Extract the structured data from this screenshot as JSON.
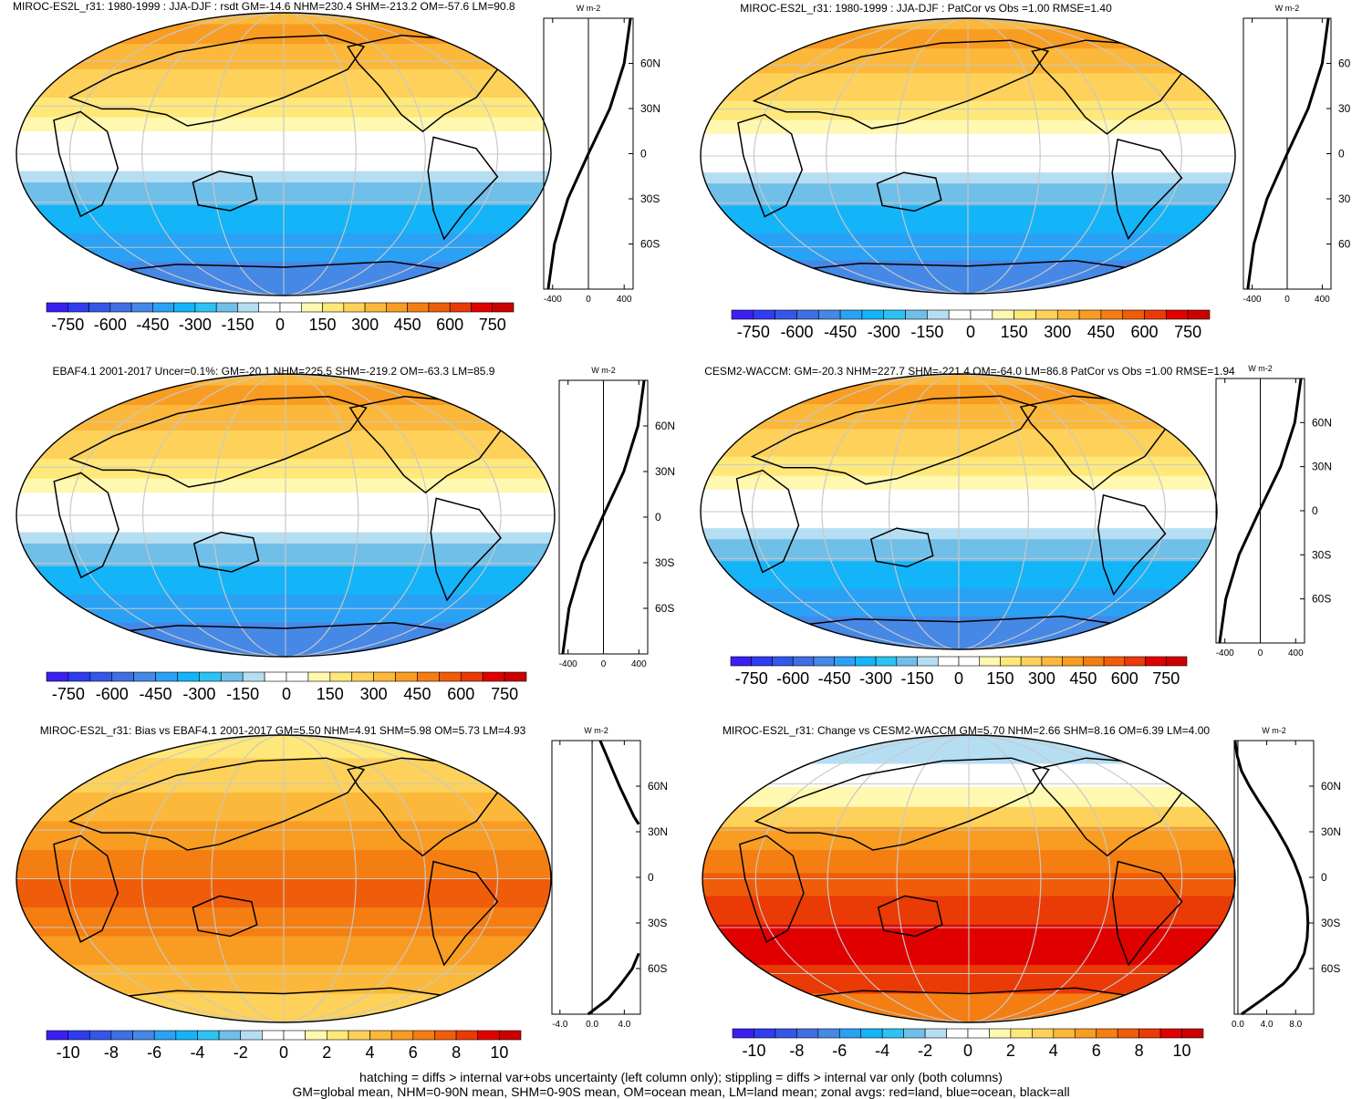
{
  "chart_data": [
    {
      "type": "heatmap",
      "title": "MIROC-ES2L_r31: 1980-1999 : JJA-DJF : rsdt GM=-14.6 NHM=230.4 SHM=-213.2 OM=-57.6 LM=90.8",
      "colorbar": {
        "ticks": [
          "-750",
          "-600",
          "-450",
          "-300",
          "-150",
          "0",
          "150",
          "300",
          "450",
          "600",
          "750"
        ],
        "range": [
          -825,
          825
        ]
      },
      "zonal_profile": {
        "units": "W m-2",
        "xticks": [
          "-400",
          "0",
          "400"
        ],
        "xlim": [
          -500,
          500
        ],
        "yticks": [
          "60N",
          "30N",
          "0",
          "30S",
          "60S"
        ],
        "ylim": [
          -90,
          90
        ],
        "lat": [
          90,
          60,
          30,
          0,
          -30,
          -60,
          -90
        ],
        "values": [
          470,
          400,
          240,
          0,
          -230,
          -380,
          -450
        ]
      }
    },
    {
      "type": "heatmap",
      "title": "MIROC-ES2L_r31: 1980-1999 : JJA-DJF : PatCor vs Obs =1.00 RMSE=1.40",
      "colorbar": {
        "ticks": [
          "-750",
          "-600",
          "-450",
          "-300",
          "-150",
          "0",
          "150",
          "300",
          "450",
          "600",
          "750"
        ],
        "range": [
          -825,
          825
        ]
      },
      "zonal_profile": {
        "units": "W m-2",
        "xticks": [
          "-400",
          "0",
          "400"
        ],
        "xlim": [
          -500,
          500
        ],
        "yticks": [
          "60",
          "30",
          "0",
          "30",
          "60"
        ],
        "ylim": [
          -90,
          90
        ],
        "lat": [
          90,
          60,
          30,
          0,
          -30,
          -60,
          -90
        ],
        "values": [
          470,
          400,
          240,
          0,
          -230,
          -380,
          -450
        ]
      }
    },
    {
      "type": "heatmap",
      "title": "EBAF4.1 2001-2017 Uncer=0.1%: GM=-20.1 NHM=225.5 SHM=-219.2 OM=-63.3 LM=85.9",
      "colorbar": {
        "ticks": [
          "-750",
          "-600",
          "-450",
          "-300",
          "-150",
          "0",
          "150",
          "300",
          "450",
          "600",
          "750"
        ],
        "range": [
          -825,
          825
        ]
      },
      "zonal_profile": {
        "units": "W m-2",
        "xticks": [
          "-400",
          "0",
          "400"
        ],
        "xlim": [
          -500,
          500
        ],
        "yticks": [
          "60N",
          "30N",
          "0",
          "30S",
          "60S"
        ],
        "ylim": [
          -90,
          90
        ],
        "lat": [
          90,
          60,
          30,
          0,
          -30,
          -60,
          -90
        ],
        "values": [
          460,
          390,
          230,
          -10,
          -240,
          -390,
          -460
        ]
      }
    },
    {
      "type": "heatmap",
      "title": "CESM2-WACCM: GM=-20.3 NHM=227.7 SHM=-221.4 OM=-64.0 LM=86.8 PatCor vs Obs =1.00 RMSE=1.94",
      "colorbar": {
        "ticks": [
          "-750",
          "-600",
          "-450",
          "-300",
          "-150",
          "0",
          "150",
          "300",
          "450",
          "600",
          "750"
        ],
        "range": [
          -825,
          825
        ]
      },
      "zonal_profile": {
        "units": "W m-2",
        "xticks": [
          "-400",
          "0",
          "400"
        ],
        "xlim": [
          -500,
          500
        ],
        "yticks": [
          "60N",
          "30N",
          "0",
          "30S",
          "60S"
        ],
        "ylim": [
          -90,
          90
        ],
        "lat": [
          90,
          60,
          30,
          0,
          -30,
          -60,
          -90
        ],
        "values": [
          460,
          390,
          230,
          -10,
          -240,
          -390,
          -460
        ]
      }
    },
    {
      "type": "heatmap",
      "title": "MIROC-ES2L_r31: Bias vs EBAF4.1 2001-2017 GM=5.50 NHM=4.91 SHM=5.98 OM=5.73 LM=4.93",
      "colorbar": {
        "ticks": [
          "-10",
          "-8",
          "-6",
          "-4",
          "-2",
          "0",
          "2",
          "4",
          "6",
          "8",
          "10"
        ],
        "range": [
          -11,
          11
        ]
      },
      "zonal_profile": {
        "units": "W m-2",
        "xticks": [
          "-4.0",
          "0.0",
          "4.0"
        ],
        "xlim": [
          -5,
          6
        ],
        "yticks": [
          "60N",
          "30N",
          "0",
          "30S",
          "60S"
        ],
        "ylim": [
          -90,
          90
        ],
        "lat": [
          90,
          80,
          70,
          60,
          50,
          40,
          35
        ],
        "values": [
          1.0,
          1.8,
          2.6,
          3.4,
          4.3,
          5.2,
          5.8
        ],
        "lat2": [
          -50,
          -60,
          -70,
          -80,
          -90
        ],
        "values2": [
          5.8,
          5.0,
          3.6,
          2.0,
          -0.5
        ]
      }
    },
    {
      "type": "heatmap",
      "title": "MIROC-ES2L_r31: Change vs CESM2-WACCM GM=5.70 NHM=2.66 SHM=8.16 OM=6.39 LM=4.00",
      "colorbar": {
        "ticks": [
          "-10",
          "-8",
          "-6",
          "-4",
          "-2",
          "0",
          "2",
          "4",
          "6",
          "8",
          "10"
        ],
        "range": [
          -11,
          11
        ]
      },
      "zonal_profile": {
        "units": "W m-2",
        "xticks": [
          "0.0",
          "4.0",
          "8.0"
        ],
        "xlim": [
          -0.5,
          10.5
        ],
        "yticks": [
          "60N",
          "30N",
          "0",
          "30S",
          "60S"
        ],
        "ylim": [
          -90,
          90
        ],
        "lat": [
          90,
          80,
          70,
          60,
          50,
          40,
          30,
          20,
          10,
          0,
          -10,
          -20,
          -30,
          -40,
          -50,
          -60,
          -70,
          -80,
          -90
        ],
        "values": [
          -0.4,
          -0.1,
          0.5,
          1.6,
          2.9,
          4.3,
          5.6,
          6.8,
          7.8,
          8.6,
          9.2,
          9.6,
          9.7,
          9.6,
          9.2,
          8.2,
          6.3,
          3.5,
          0.5
        ]
      }
    }
  ],
  "footer": {
    "line1": "hatching = diffs > internal var+obs uncertainty (left column only); stippling = diffs > internal var only (both columns)",
    "line2": "GM=global mean, NHM=0-90N mean, SHM=0-90S mean, OM=ocean mean, LM=land mean; zonal avgs: red=land, blue=ocean, black=all"
  },
  "colors": {
    "colorbar": [
      "#3b1ff0",
      "#2f3cf0",
      "#3457e8",
      "#3f6fe3",
      "#4688e6",
      "#2aa1f5",
      "#14b4f8",
      "#2cc2f4",
      "#70bfe8",
      "#b6def3",
      "#ffffff",
      "#ffffff",
      "#fff8b0",
      "#ffe87a",
      "#fdd15a",
      "#fcb83a",
      "#f89d22",
      "#f57e12",
      "#f05d0a",
      "#ea3a06",
      "#e00000",
      "#cc0000"
    ],
    "gridline": "#c8c8c8",
    "coast": "#000000"
  }
}
